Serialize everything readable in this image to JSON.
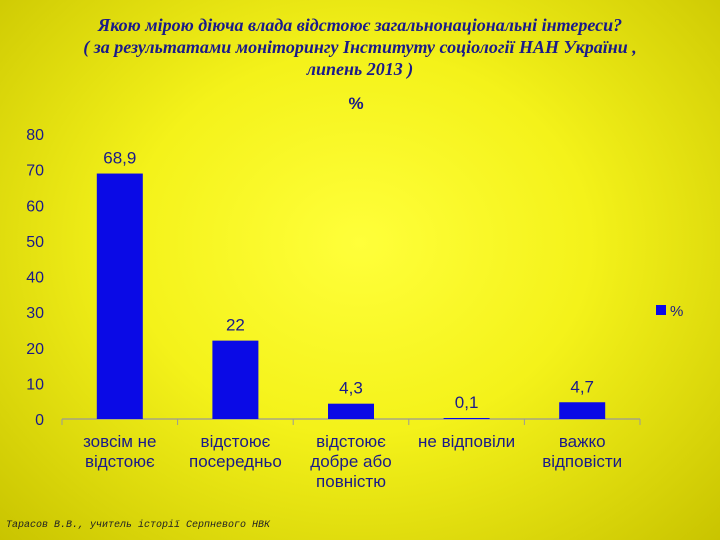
{
  "title_lines": [
    "Якою мірою діюча влада відстоює загальнонаціональні інтереси?",
    "( за результатами моніторингу Інституту соціології НАН України ,",
    "липень 2013 )"
  ],
  "footer": "Тарасов В.В., учитель історії Серпневого НВК",
  "chart_data": {
    "type": "bar",
    "title": "%",
    "categories": [
      [
        "зовсім не",
        "відстоює"
      ],
      [
        "відстоює",
        "посередньо"
      ],
      [
        "відстоює",
        "добре або",
        "повністю"
      ],
      [
        "не відповіли"
      ],
      [
        "важко",
        "відповісти"
      ]
    ],
    "series": [
      {
        "name": "%",
        "values": [
          68.9,
          22,
          4.3,
          0.1,
          4.7
        ]
      }
    ],
    "data_labels": [
      "68,9",
      "22",
      "4,3",
      "0,1",
      "4,7"
    ],
    "yticks": [
      "0",
      "10",
      "20",
      "30",
      "40",
      "50",
      "60",
      "70",
      "80"
    ],
    "ylim": [
      0,
      80
    ],
    "xlabel": "",
    "ylabel": "",
    "grid": false,
    "legend": "right",
    "colors": {
      "bar": "#0a0ae6",
      "text": "#1a1a8a",
      "axis": "#999999"
    }
  }
}
